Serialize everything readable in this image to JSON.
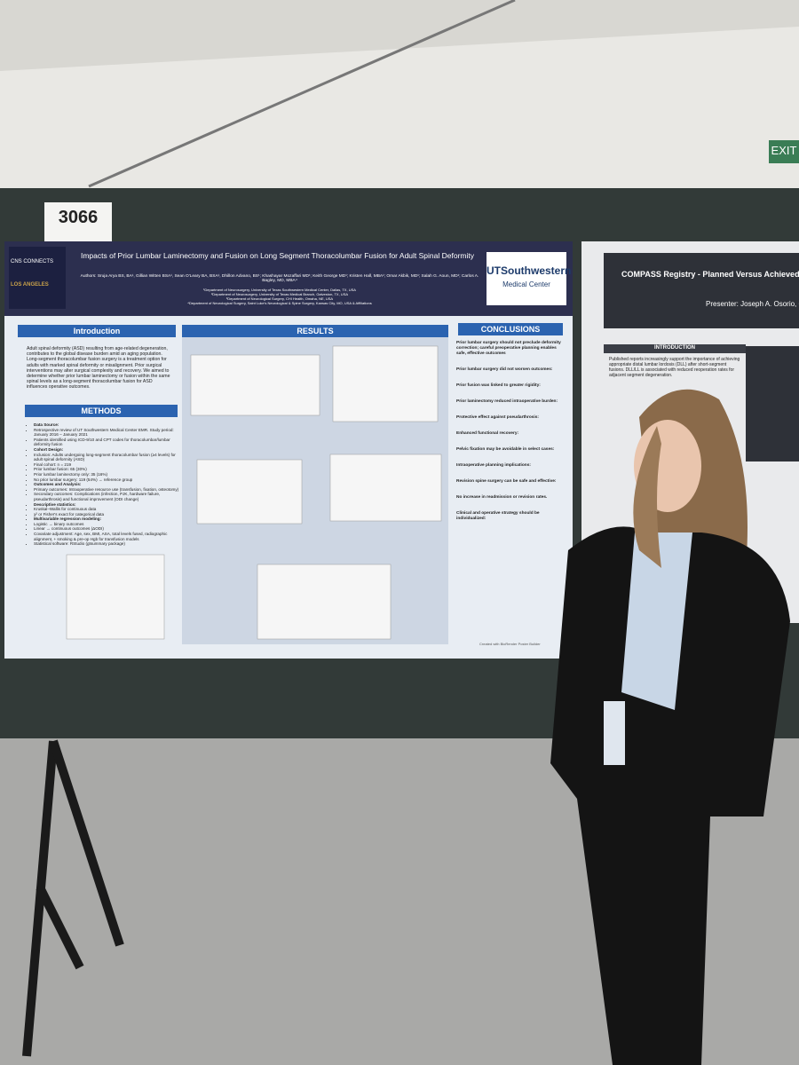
{
  "booth_number": "3066",
  "exit_sign": "EXIT",
  "poster": {
    "logo": "CNS CONNECTS",
    "logo_city": "LOS ANGELES",
    "title": "Impacts of Prior Lumbar Laminectomy and Fusion on Long Segment Thoracolumbar Fusion for Adult Spinal Deformity",
    "authors": "Authors: Sruja Arya BS, BA¹, Gillian Witten BSA¹, Sean O'Leary BA, BSA¹, Dhillon Advano, BS¹; Khashayar Mozaffari MD¹; Keith George MD¹; Kristen Hall, MBA¹; Omar Akbik, MD¹; Salah G. Aoun, MD¹; Carlos A. Bagley, MD, MBA⁴",
    "affiliations": [
      "¹Department of Neurosurgery, University of Texas Southwestern Medical Center, Dallas, TX, USA",
      "²Department of Neurosurgery, University of Texas Medical Branch, Galveston, TX, USA",
      "³Department of Neurological Surgery, CHI Health, Omaha, NE, USA",
      "⁴Department of Neurological Surgery, Saint Luke's Neurological & Spine Surgery, Kansas City, MO, USA & Affiliations"
    ],
    "institution": "UTSouthwestern",
    "institution_sub": "Medical Center",
    "introduction": {
      "heading": "Introduction",
      "text": "Adult spinal deformity (ASD) resulting from age-related degeneration, contributes to the global disease burden amid an aging population. Long-segment thoracolumbar fusion surgery is a treatment option for adults with marked spinal deformity or misalignment. Prior surgical interventions may alter surgical complexity and recovery. We aimed to determine whether prior lumbar laminectomy or fusion within the same spinal levels as a long-segment thoracolumbar fusion for ASD influences operative outcomes."
    },
    "methods": {
      "heading": "METHODS",
      "lines": [
        "Data Source:",
        "Retrospective review of UT Southwestern Medical Center EMR. Study period: January 2016 – January 2021",
        "Patients identified using ICD-9/10 and CPT codes for thoracolumbar/lumbar deformity fusion",
        "Cohort Design:",
        "Inclusion: Adults undergoing long-segment thoracolumbar fusion (≥4 levels) for adult spinal deformity (ASD)",
        "Final cohort: n = 219",
        "Prior lumbar fusion: 65 (30%)",
        "Prior lumbar laminectomy only: 35 (16%)",
        "No prior lumbar surgery: 119 (54%) → reference group",
        "Outcomes and Analysis:",
        "Primary outcomes: Intraoperative resource use (transfusion, fixation, osteotomy)",
        "Secondary outcomes: Complications (infection, PJK, hardware failure, pseudarthrosis) and functional improvement (ODI change)",
        "Descriptive statistics:",
        "Kruskal–Wallis for continuous data",
        "χ² or Fisher's exact for categorical data",
        "Multivariable regression modeling:",
        "Logistic → binary outcomes",
        "Linear → continuous outcomes (ΔODI)",
        "Covariate adjustment: Age, sex, BMI, ASA, total levels fused, radiographic alignment, + smoking & pre-op Hgb for transfusion models",
        "Statistical software: RStudio (gtsummary package)"
      ]
    },
    "results": {
      "heading": "RESULTS"
    },
    "conclusions": {
      "heading": "CONCLUSIONS",
      "items": [
        "Prior lumbar surgery should not preclude deformity correction; careful preoperative planning enables safe, effective outcomes",
        "Prior lumbar surgery did not worsen outcomes:",
        "Prior fusion was linked to greater rigidity:",
        "Prior laminectomy reduced intraoperative burden:",
        "Protective effect against pseudarthrosis:",
        "Enhanced functional recovery:",
        "Pelvic fixation may be avoidable in select cases:",
        "Intraoperative planning implications:",
        "Revision spine surgery can be safe and effective:",
        "No increase in readmission or revision rates.",
        "Clinical and operative strategy should be individualized:"
      ]
    },
    "footer": "Created with BioRender Poster Builder"
  },
  "neighbor_poster": {
    "title": "COMPASS Registry - Planned Versus Achieved Distal Lu",
    "presenter": "Presenter: Joseph A. Osorio, Co-aut",
    "heading": "INTRODUCTION",
    "text": "Published reports increasingly support the importance of achieving appropriate distal lumbar lordosis (DLL) after short-segment fusions. DLL/LL is associated with reduced reoperation rates for adjacent segment degeneration."
  }
}
